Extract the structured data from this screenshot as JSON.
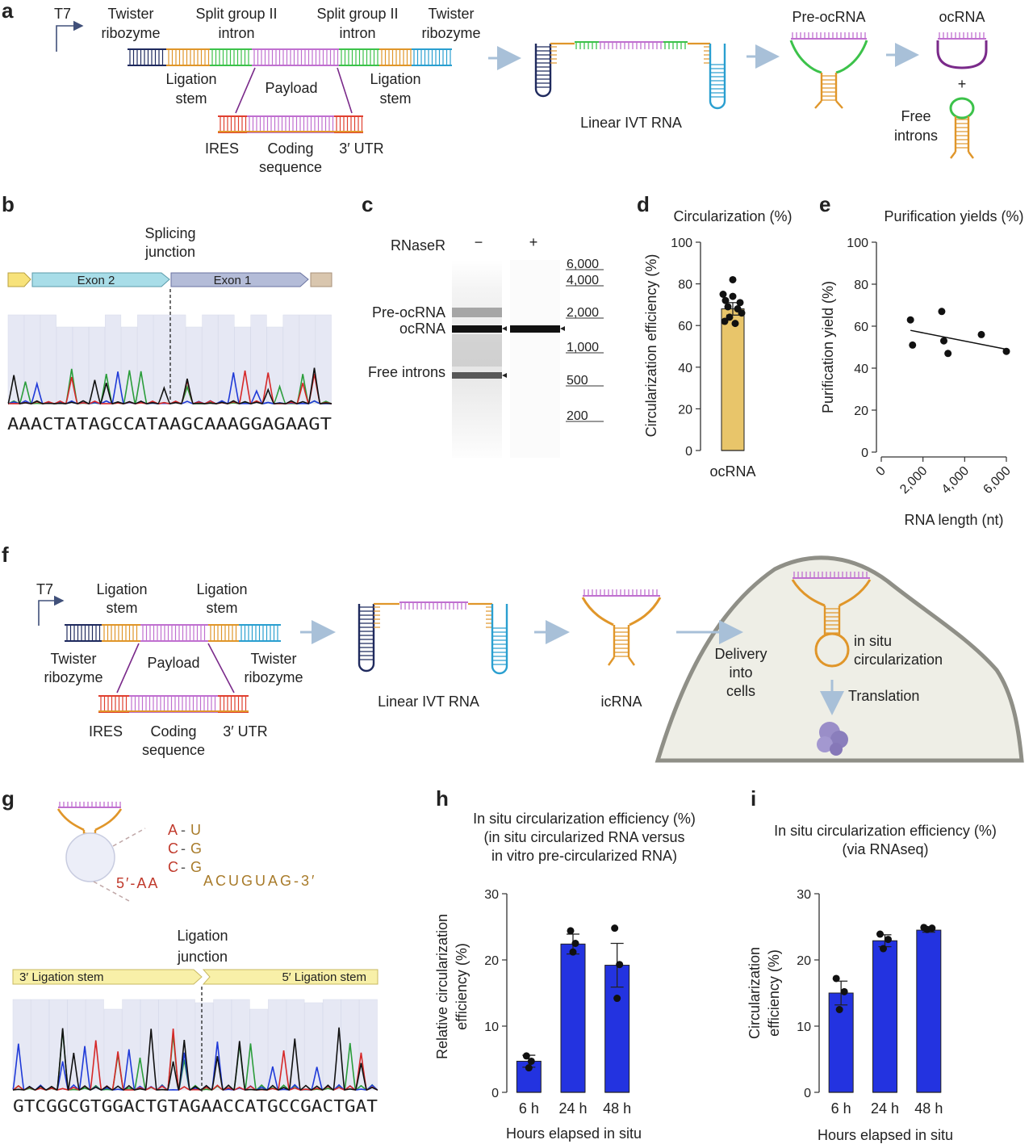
{
  "panel_a": {
    "letter": "a",
    "t7": "T7",
    "twister_left": [
      "Twister",
      "ribozyme"
    ],
    "split_left": [
      "Split group II",
      "intron"
    ],
    "split_right": [
      "Split group II",
      "intron"
    ],
    "twister_right": [
      "Twister",
      "ribozyme"
    ],
    "ligation_left": [
      "Ligation",
      "stem"
    ],
    "payload": "Payload",
    "ligation_right": [
      "Ligation",
      "stem"
    ],
    "ires": "IRES",
    "coding": [
      "Coding",
      "sequence"
    ],
    "utr": "3′ UTR",
    "linear_ivt": "Linear IVT RNA",
    "pre_ocrna": "Pre-ocRNA",
    "ocrna": "ocRNA",
    "plus": "+",
    "free_introns": [
      "Free",
      "introns"
    ]
  },
  "panel_b": {
    "letter": "b",
    "splicing": [
      "Splicing",
      "junction"
    ],
    "exon2": "Exon 2",
    "exon1": "Exon 1",
    "sequence": "AAACTATAGCCATAAGCAAAGGAGAAGT"
  },
  "panel_c": {
    "letter": "c",
    "rnaser": "RNaseR",
    "minus": "−",
    "plus": "+",
    "band_labels": [
      "Pre-ocRNA",
      "ocRNA",
      "Free introns"
    ],
    "ladder": [
      "6,000",
      "4,000",
      "2,000",
      "1,000",
      "500",
      "200"
    ]
  },
  "panel_d": {
    "letter": "d",
    "title": "Circularization (%)",
    "ylabel": "Circularization efficiency (%)",
    "xlabel": "ocRNA"
  },
  "panel_e": {
    "letter": "e",
    "title": "Purification yields (%)",
    "ylabel": "Purification yield (%)",
    "xlabel": "RNA length (nt)"
  },
  "panel_f": {
    "letter": "f",
    "t7": "T7",
    "ligation_left": [
      "Ligation",
      "stem"
    ],
    "ligation_right": [
      "Ligation",
      "stem"
    ],
    "twister_left": [
      "Twister",
      "ribozyme"
    ],
    "payload": "Payload",
    "twister_right": [
      "Twister",
      "ribozyme"
    ],
    "ires": "IRES",
    "coding": [
      "Coding",
      "sequence"
    ],
    "utr": "3′ UTR",
    "linear_ivt": "Linear IVT RNA",
    "icrna": "icRNA",
    "delivery": [
      "Delivery",
      "into",
      "cells"
    ],
    "in_situ": [
      "in situ",
      "circularization"
    ],
    "translation": "Translation"
  },
  "panel_g": {
    "letter": "g",
    "pairs": [
      [
        "A",
        "U"
      ],
      [
        "C",
        "G"
      ],
      [
        "C",
        "G"
      ]
    ],
    "five_prime": "5′-AA",
    "three_prime": "ACUGUAG-3′",
    "ligation_junction": [
      "Ligation",
      "junction"
    ],
    "stem3": "3′ Ligation stem",
    "stem5": "5′ Ligation stem",
    "sequence": "GTCGGCGTGGACTGTAGAACCATGCCGACTGAT"
  },
  "panel_h": {
    "letter": "h",
    "title": [
      "In situ circularization efficiency (%)",
      "(in situ circularized RNA versus",
      "in vitro pre-circularized RNA)"
    ],
    "ylabel": [
      "Relative circularization",
      "efficiency (%)"
    ],
    "xlabel": "Hours elapsed in situ"
  },
  "panel_i": {
    "letter": "i",
    "title": [
      "In situ circularization efficiency (%)",
      "(via RNAseq)"
    ],
    "ylabel": [
      "Circularization",
      "efficiency (%)"
    ],
    "xlabel": "Hours elapsed in situ"
  },
  "colors": {
    "bar_blue": "#2333e0",
    "bar_gold": "#e8c56a",
    "twister_left": "#1f2a5e",
    "ligation": "#e0962a",
    "intron": "#3cc24a",
    "payload": "#c070d0",
    "twister_right": "#2a9fd0",
    "ires": "#e04030",
    "arrow": "#a8c0d8"
  },
  "chart_data": [
    {
      "id": "d",
      "type": "bar",
      "title": "Circularization (%)",
      "ylabel": "Circularization efficiency (%)",
      "categories": [
        "ocRNA"
      ],
      "values": [
        68
      ],
      "error": [
        3
      ],
      "points": [
        [
          82,
          75,
          72,
          74,
          71,
          69,
          66,
          64,
          68,
          62,
          61
        ]
      ],
      "ylim": [
        0,
        100
      ],
      "yticks": [
        0,
        20,
        40,
        60,
        80,
        100
      ]
    },
    {
      "id": "e",
      "type": "scatter",
      "title": "Purification yields (%)",
      "xlabel": "RNA length (nt)",
      "ylabel": "Purification yield (%)",
      "x": [
        1400,
        1500,
        2900,
        3000,
        3200,
        4800,
        6000
      ],
      "y": [
        63,
        51,
        67,
        53,
        47,
        56,
        48
      ],
      "trend": [
        [
          1400,
          58
        ],
        [
          6000,
          49
        ]
      ],
      "xlim": [
        0,
        6000
      ],
      "ylim": [
        0,
        100
      ],
      "xticks": [
        "0",
        "2,000",
        "4,000",
        "6,000"
      ],
      "yticks": [
        0,
        20,
        40,
        60,
        80,
        100
      ]
    },
    {
      "id": "h",
      "type": "bar",
      "xlabel": "Hours elapsed in situ",
      "ylabel": "Relative circularization efficiency (%)",
      "categories": [
        "6 h",
        "24 h",
        "48 h"
      ],
      "values": [
        4.7,
        22.4,
        19.2
      ],
      "error": [
        0.9,
        1.5,
        3.3
      ],
      "points": [
        [
          5.5,
          4.7,
          3.7
        ],
        [
          24.4,
          22.5,
          21.2
        ],
        [
          24.8,
          19.3,
          14.2
        ]
      ],
      "ylim": [
        0,
        30
      ],
      "yticks": [
        0,
        10,
        20,
        30
      ]
    },
    {
      "id": "i",
      "type": "bar",
      "xlabel": "Hours elapsed in situ",
      "ylabel": "Circularization efficiency (%)",
      "categories": [
        "6 h",
        "24 h",
        "48 h"
      ],
      "values": [
        15.0,
        22.9,
        24.5
      ],
      "error": [
        1.8,
        0.9,
        0.3
      ],
      "points": [
        [
          17.2,
          15.2,
          12.5
        ],
        [
          23.9,
          23.1,
          21.7
        ],
        [
          24.9,
          24.8,
          24.6
        ]
      ],
      "ylim": [
        0,
        30
      ],
      "yticks": [
        0,
        10,
        20,
        30
      ]
    }
  ]
}
